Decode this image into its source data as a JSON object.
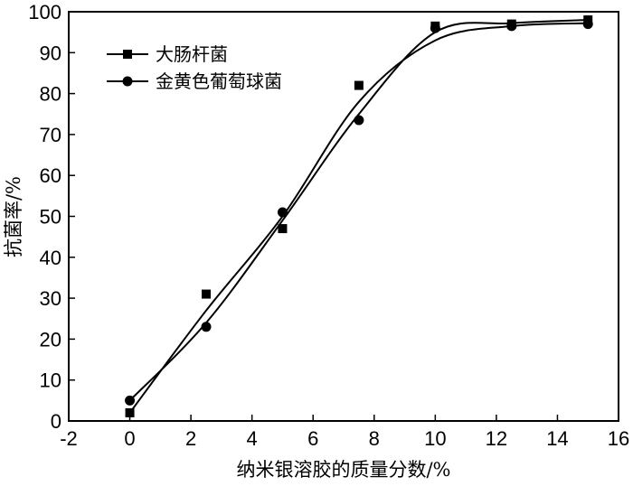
{
  "chart_data": {
    "type": "scatter",
    "xlabel": "纳米银溶胶的质量分数/%",
    "ylabel": "抗菌率/%",
    "xlim": [
      -2,
      16
    ],
    "ylim": [
      0,
      100
    ],
    "xticks": [
      -2,
      0,
      2,
      4,
      6,
      8,
      10,
      12,
      14,
      16
    ],
    "yticks": [
      0,
      10,
      20,
      30,
      40,
      50,
      60,
      70,
      80,
      90,
      100
    ],
    "grid": false,
    "legend": "top-left",
    "series": [
      {
        "name": "大肠杆菌",
        "marker": "square",
        "x": [
          0,
          2.5,
          5,
          7.5,
          10,
          12.5,
          15
        ],
        "y": [
          2,
          31,
          47,
          82,
          96.5,
          97,
          98
        ],
        "fit": [
          [
            0,
            2
          ],
          [
            2.5,
            27
          ],
          [
            5,
            50
          ],
          [
            7.5,
            78
          ],
          [
            10,
            93
          ],
          [
            12.5,
            96.5
          ],
          [
            15,
            97.2
          ]
        ]
      },
      {
        "name": "金黄色葡萄球菌",
        "marker": "circle",
        "x": [
          0,
          2.5,
          5,
          7.5,
          10,
          12.5,
          15
        ],
        "y": [
          5,
          23,
          51,
          73.5,
          96,
          96.5,
          97
        ],
        "fit": [
          [
            0,
            5
          ],
          [
            2.5,
            24
          ],
          [
            5,
            49
          ],
          [
            7.5,
            75
          ],
          [
            10,
            95
          ],
          [
            12.5,
            97.2
          ],
          [
            15,
            98
          ]
        ]
      }
    ]
  }
}
